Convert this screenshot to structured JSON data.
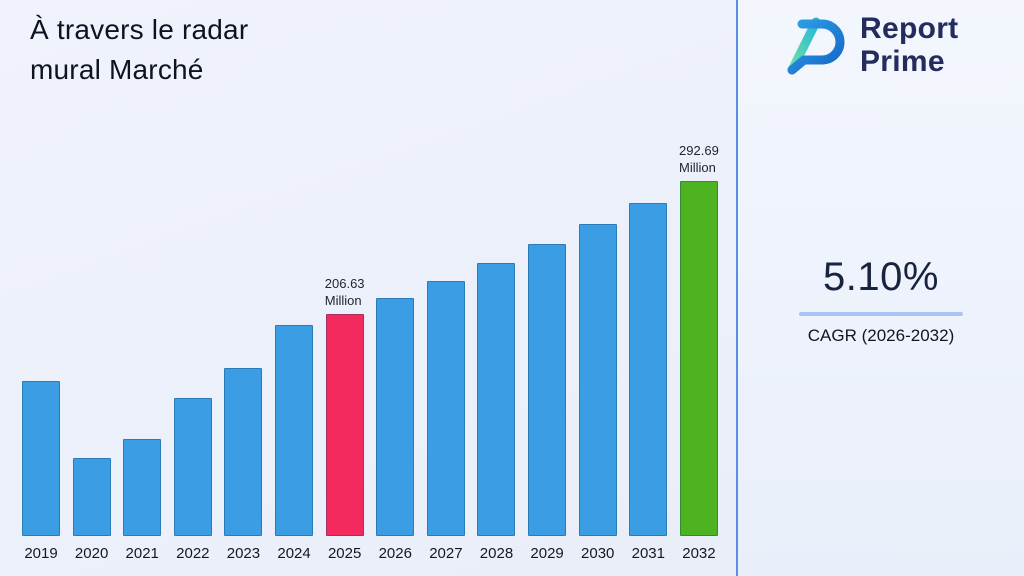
{
  "header": {
    "title_line1": "À travers le radar",
    "title_line2": "mural Marché"
  },
  "logo": {
    "name": "Report Prime",
    "line1": "Report",
    "line2": "Prime"
  },
  "stats": {
    "cagr_value": "5.10%",
    "cagr_label": "CAGR (2026-2032)"
  },
  "chart_data": {
    "type": "bar",
    "title": "À travers le radar mural Marché",
    "categories": [
      "2019",
      "2020",
      "2021",
      "2022",
      "2023",
      "2024",
      "2025",
      "2026",
      "2027",
      "2028",
      "2029",
      "2030",
      "2031",
      "2032"
    ],
    "values": [
      163.3,
      113.4,
      125.7,
      152.3,
      171.7,
      199.5,
      206.63,
      217.2,
      228.3,
      239.9,
      252.2,
      265.0,
      278.6,
      292.69
    ],
    "unit": "Million",
    "xlabel": "",
    "ylabel": "",
    "ylim": [
      63,
      293
    ],
    "grid": false,
    "legend": "none",
    "annotations": [
      {
        "year": "2025",
        "value_text": "206.63",
        "unit_text": "Million"
      },
      {
        "year": "2032",
        "value_text": "292.69",
        "unit_text": "Million"
      }
    ],
    "bar_colors": {
      "default": "#3b9de4",
      "2025": "#f42a5e",
      "2032": "#4db321"
    }
  }
}
